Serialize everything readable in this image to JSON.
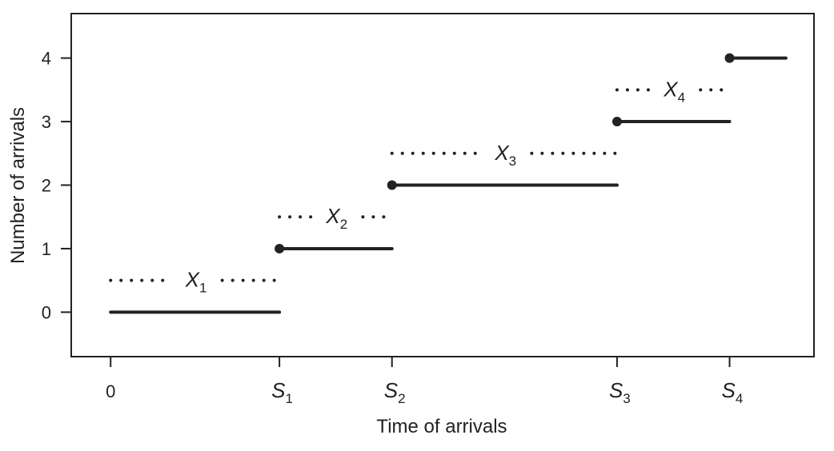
{
  "chart_data": {
    "type": "step",
    "title": "",
    "xlabel": "Time of arrivals",
    "ylabel": "Number of arrivals",
    "x_ticks": [
      {
        "value": 0,
        "label": "0",
        "sub": ""
      },
      {
        "value": 1.5,
        "label": "S",
        "sub": "1"
      },
      {
        "value": 2.5,
        "label": "S",
        "sub": "2"
      },
      {
        "value": 4.5,
        "label": "S",
        "sub": "3"
      },
      {
        "value": 5.5,
        "label": "S",
        "sub": "4"
      }
    ],
    "y_ticks": [
      0,
      1,
      2,
      3,
      4
    ],
    "xlim": [
      -0.35,
      6.25
    ],
    "ylim": [
      -0.7,
      4.7
    ],
    "steps": [
      {
        "level": 0,
        "x_start": 0,
        "x_end": 1.5,
        "closed_start": false
      },
      {
        "level": 1,
        "x_start": 1.5,
        "x_end": 2.5,
        "closed_start": true
      },
      {
        "level": 2,
        "x_start": 2.5,
        "x_end": 4.5,
        "closed_start": true
      },
      {
        "level": 3,
        "x_start": 4.5,
        "x_end": 5.5,
        "closed_start": true
      },
      {
        "level": 4,
        "x_start": 5.5,
        "x_end": 6.0,
        "closed_start": true
      }
    ],
    "interarrival_labels": [
      {
        "label": "X",
        "sub": "1",
        "x_start": 0,
        "x_end": 1.5,
        "y": 0.5
      },
      {
        "label": "X",
        "sub": "2",
        "x_start": 1.5,
        "x_end": 2.5,
        "y": 1.5
      },
      {
        "label": "X",
        "sub": "3",
        "x_start": 2.5,
        "x_end": 4.5,
        "y": 2.5
      },
      {
        "label": "X",
        "sub": "4",
        "x_start": 4.5,
        "x_end": 5.5,
        "y": 3.5
      }
    ],
    "grid": false,
    "colors": {
      "line": "#222222",
      "frame": "#222222"
    }
  }
}
